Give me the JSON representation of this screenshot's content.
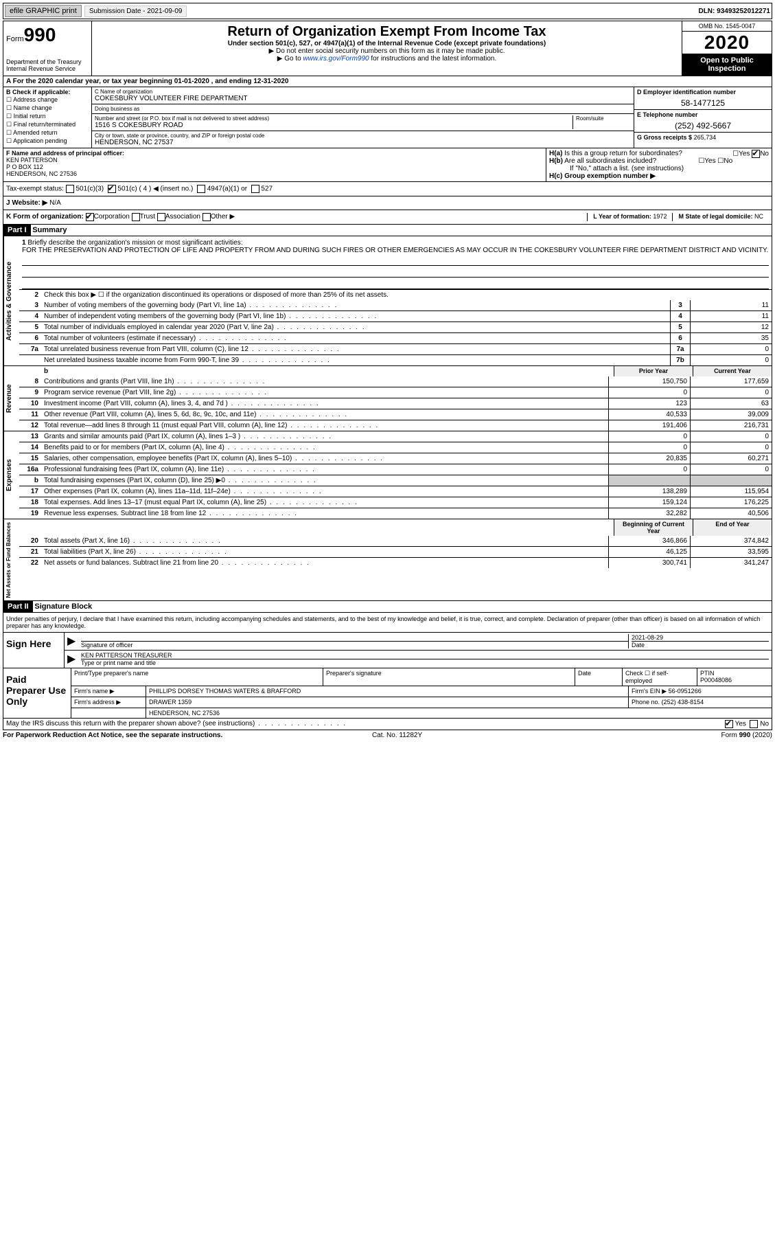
{
  "topbar": {
    "efile": "efile GRAPHIC print",
    "submission_label": "Submission Date - 2021-09-09",
    "dln": "DLN: 93493252012271"
  },
  "header": {
    "form_label": "Form",
    "form_number": "990",
    "dept": "Department of the Treasury\nInternal Revenue Service",
    "title": "Return of Organization Exempt From Income Tax",
    "subtitle": "Under section 501(c), 527, or 4947(a)(1) of the Internal Revenue Code (except private foundations)",
    "note1": "▶ Do not enter social security numbers on this form as it may be made public.",
    "note2_pre": "▶ Go to ",
    "note2_link": "www.irs.gov/Form990",
    "note2_post": " for instructions and the latest information.",
    "omb": "OMB No. 1545-0047",
    "year": "2020",
    "open": "Open to Public Inspection"
  },
  "section_a": "A For the 2020 calendar year, or tax year beginning 01-01-2020   , and ending 12-31-2020",
  "col_b": {
    "title": "B Check if applicable:",
    "items": [
      "Address change",
      "Name change",
      "Initial return",
      "Final return/terminated",
      "Amended return",
      "Application pending"
    ]
  },
  "col_c": {
    "name_lbl": "C Name of organization",
    "name": "COKESBURY VOLUNTEER FIRE DEPARTMENT",
    "dba_lbl": "Doing business as",
    "dba": "",
    "street_lbl": "Number and street (or P.O. box if mail is not delivered to street address)",
    "room_lbl": "Room/suite",
    "street": "1516 S COKESBURY ROAD",
    "city_lbl": "City or town, state or province, country, and ZIP or foreign postal code",
    "city": "HENDERSON, NC  27537"
  },
  "col_de": {
    "d_lbl": "D Employer identification number",
    "d_val": "58-1477125",
    "e_lbl": "E Telephone number",
    "e_val": "(252) 492-5667",
    "g_lbl": "G Gross receipts $",
    "g_val": "265,734"
  },
  "col_f": {
    "lbl": "F Name and address of principal officer:",
    "line1": "KEN PATTERSON",
    "line2": "P O BOX 112",
    "line3": "HENDERSON, NC  27536"
  },
  "col_h": {
    "ha": "H(a)  Is this a group return for subordinates?",
    "ha_no": true,
    "hb": "H(b)  Are all subordinates included?",
    "hb_note": "If \"No,\" attach a list. (see instructions)",
    "hc": "H(c)  Group exemption number ▶"
  },
  "tax_status": {
    "label": "Tax-exempt status:",
    "c4_checked": true,
    "opts": [
      "501(c)(3)",
      "501(c) ( 4 ) ◀ (insert no.)",
      "4947(a)(1) or",
      "527"
    ]
  },
  "website": {
    "label": "J   Website: ▶",
    "val": "N/A"
  },
  "row_k": {
    "k": "K Form of organization:",
    "corp_checked": true,
    "opts": [
      "Corporation",
      "Trust",
      "Association",
      "Other ▶"
    ],
    "l_lbl": "L Year of formation:",
    "l_val": "1972",
    "m_lbl": "M State of legal domicile:",
    "m_val": "NC"
  },
  "part1": {
    "hdr": "Part I",
    "title": "Summary",
    "line1_lbl": "Briefly describe the organization's mission or most significant activities:",
    "mission": "FOR THE PRESERVATION AND PROTECTION OF LIFE AND PROPERTY FROM AND DURING SUCH FIRES OR OTHER EMERGENCIES AS MAY OCCUR IN THE COKESBURY VOLUNTEER FIRE DEPARTMENT DISTRICT AND VICINITY.",
    "line2": "Check this box ▶ ☐  if the organization discontinued its operations or disposed of more than 25% of its net assets.",
    "gov_label": "Activities & Governance",
    "rev_label": "Revenue",
    "exp_label": "Expenses",
    "net_label": "Net Assets or Fund Balances",
    "gov_lines": [
      {
        "n": "3",
        "d": "Number of voting members of the governing body (Part VI, line 1a)",
        "b": "3",
        "v": "11"
      },
      {
        "n": "4",
        "d": "Number of independent voting members of the governing body (Part VI, line 1b)",
        "b": "4",
        "v": "11"
      },
      {
        "n": "5",
        "d": "Total number of individuals employed in calendar year 2020 (Part V, line 2a)",
        "b": "5",
        "v": "12"
      },
      {
        "n": "6",
        "d": "Total number of volunteers (estimate if necessary)",
        "b": "6",
        "v": "35"
      },
      {
        "n": "7a",
        "d": "Total unrelated business revenue from Part VIII, column (C), line 12",
        "b": "7a",
        "v": "0"
      },
      {
        "n": "",
        "d": "Net unrelated business taxable income from Form 990-T, line 39",
        "b": "7b",
        "v": "0"
      }
    ],
    "col_hdr_prior": "Prior Year",
    "col_hdr_curr": "Current Year",
    "rev_lines": [
      {
        "n": "8",
        "d": "Contributions and grants (Part VIII, line 1h)",
        "p": "150,750",
        "c": "177,659"
      },
      {
        "n": "9",
        "d": "Program service revenue (Part VIII, line 2g)",
        "p": "0",
        "c": "0"
      },
      {
        "n": "10",
        "d": "Investment income (Part VIII, column (A), lines 3, 4, and 7d )",
        "p": "123",
        "c": "63"
      },
      {
        "n": "11",
        "d": "Other revenue (Part VIII, column (A), lines 5, 6d, 8c, 9c, 10c, and 11e)",
        "p": "40,533",
        "c": "39,009"
      },
      {
        "n": "12",
        "d": "Total revenue—add lines 8 through 11 (must equal Part VIII, column (A), line 12)",
        "p": "191,406",
        "c": "216,731"
      }
    ],
    "exp_lines": [
      {
        "n": "13",
        "d": "Grants and similar amounts paid (Part IX, column (A), lines 1–3 )",
        "p": "0",
        "c": "0"
      },
      {
        "n": "14",
        "d": "Benefits paid to or for members (Part IX, column (A), line 4)",
        "p": "0",
        "c": "0"
      },
      {
        "n": "15",
        "d": "Salaries, other compensation, employee benefits (Part IX, column (A), lines 5–10)",
        "p": "20,835",
        "c": "60,271"
      },
      {
        "n": "16a",
        "d": "Professional fundraising fees (Part IX, column (A), line 11e)",
        "p": "0",
        "c": "0"
      },
      {
        "n": "b",
        "d": "Total fundraising expenses (Part IX, column (D), line 25) ▶0",
        "p": "",
        "c": "",
        "shade": true
      },
      {
        "n": "17",
        "d": "Other expenses (Part IX, column (A), lines 11a–11d, 11f–24e)",
        "p": "138,289",
        "c": "115,954"
      },
      {
        "n": "18",
        "d": "Total expenses. Add lines 13–17 (must equal Part IX, column (A), line 25)",
        "p": "159,124",
        "c": "176,225"
      },
      {
        "n": "19",
        "d": "Revenue less expenses. Subtract line 18 from line 12",
        "p": "32,282",
        "c": "40,506"
      }
    ],
    "col_hdr_begin": "Beginning of Current Year",
    "col_hdr_end": "End of Year",
    "net_lines": [
      {
        "n": "20",
        "d": "Total assets (Part X, line 16)",
        "p": "346,866",
        "c": "374,842"
      },
      {
        "n": "21",
        "d": "Total liabilities (Part X, line 26)",
        "p": "46,125",
        "c": "33,595"
      },
      {
        "n": "22",
        "d": "Net assets or fund balances. Subtract line 21 from line 20",
        "p": "300,741",
        "c": "341,247"
      }
    ]
  },
  "part2": {
    "hdr": "Part II",
    "title": "Signature Block",
    "declare": "Under penalties of perjury, I declare that I have examined this return, including accompanying schedules and statements, and to the best of my knowledge and belief, it is true, correct, and complete. Declaration of preparer (other than officer) is based on all information of which preparer has any knowledge."
  },
  "sign": {
    "left": "Sign Here",
    "sig_lbl": "Signature of officer",
    "date_lbl": "Date",
    "date": "2021-08-29",
    "name": "KEN PATTERSON  TREASURER",
    "name_lbl": "Type or print name and title"
  },
  "prep": {
    "left": "Paid Preparer Use Only",
    "r1": {
      "c1": "Print/Type preparer's name",
      "c2": "Preparer's signature",
      "c3": "Date",
      "c4": "Check ☐ if self-employed",
      "c5_lbl": "PTIN",
      "c5": "P00048086"
    },
    "r2": {
      "lbl": "Firm's name    ▶",
      "val": "PHILLIPS DORSEY THOMAS WATERS & BRAFFORD",
      "ein_lbl": "Firm's EIN ▶",
      "ein": "56-0951266"
    },
    "r3": {
      "lbl": "Firm's address ▶",
      "val": "DRAWER 1359",
      "ph_lbl": "Phone no.",
      "ph": "(252) 438-8154"
    },
    "r4": {
      "val": "HENDERSON, NC  27536"
    }
  },
  "footer": {
    "q": "May the IRS discuss this return with the preparer shown above? (see instructions)",
    "yes_checked": true,
    "paperwork": "For Paperwork Reduction Act Notice, see the separate instructions.",
    "cat": "Cat. No. 11282Y",
    "form": "Form 990 (2020)"
  }
}
